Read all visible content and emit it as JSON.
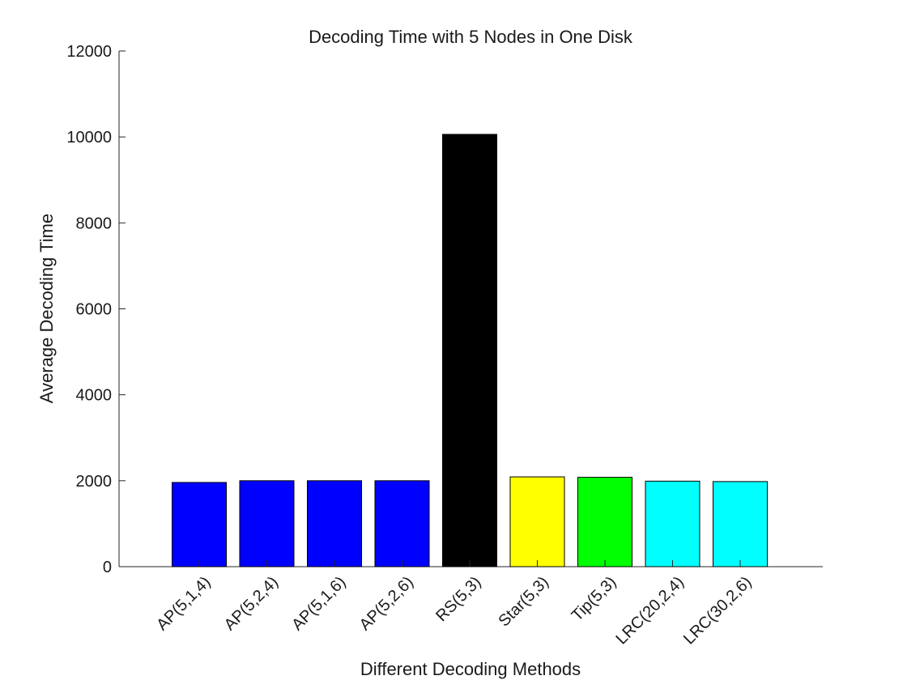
{
  "chart_data": {
    "type": "bar",
    "title": "Decoding Time with 5 Nodes in One Disk",
    "xlabel": "Different Decoding Methods",
    "ylabel": "Average Decoding Time",
    "ylim": [
      0,
      12000
    ],
    "yticks": [
      0,
      2000,
      4000,
      6000,
      8000,
      10000,
      12000
    ],
    "grid": false,
    "categories": [
      "AP(5,1,4)",
      "AP(5,2,4)",
      "AP(5,1,6)",
      "AP(5,2,6)",
      "RS(5,3)",
      "Star(5,3)",
      "Tip(5,3)",
      "LRC(20,2,4)",
      "LRC(30,2,6)"
    ],
    "values": [
      1960,
      2000,
      2000,
      2000,
      10060,
      2090,
      2080,
      1990,
      1980
    ],
    "colors": [
      "#0000ff",
      "#0000ff",
      "#0000ff",
      "#0000ff",
      "#000000",
      "#ffff00",
      "#00ff00",
      "#00ffff",
      "#00ffff"
    ]
  }
}
